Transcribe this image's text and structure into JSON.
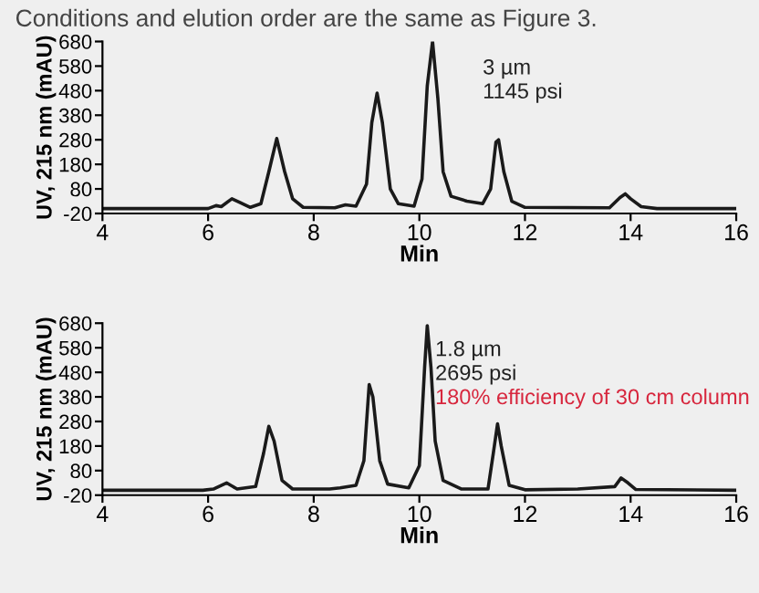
{
  "chart_data": [
    {
      "type": "line",
      "title": "Conditions and elution order are the same as Figure 3.",
      "xlabel": "Min",
      "ylabel": "UV, 215 nm (mAU)",
      "annotations": [
        "3 µm",
        "1145 psi"
      ],
      "xlim": [
        4,
        16
      ],
      "xticks": [
        4,
        6,
        8,
        10,
        12,
        14,
        16
      ],
      "ylim": [
        -20,
        680
      ],
      "yticks": [
        -20,
        80,
        180,
        280,
        380,
        480,
        580,
        680
      ],
      "grid": false,
      "legend": false,
      "series": [
        {
          "color": "#1a1a1a",
          "x": [
            4,
            6.0,
            6.15,
            6.25,
            6.45,
            6.6,
            6.8,
            7.0,
            7.15,
            7.3,
            7.45,
            7.6,
            7.8,
            8.4,
            8.6,
            8.8,
            9.0,
            9.1,
            9.2,
            9.3,
            9.45,
            9.6,
            9.9,
            10.05,
            10.15,
            10.25,
            10.35,
            10.45,
            10.6,
            10.9,
            11.2,
            11.35,
            11.45,
            11.5,
            11.6,
            11.75,
            12.0,
            13.6,
            13.8,
            13.9,
            14.0,
            14.2,
            14.5,
            16
          ],
          "values": [
            0,
            0,
            12,
            8,
            40,
            25,
            5,
            20,
            150,
            285,
            150,
            40,
            5,
            3,
            15,
            10,
            100,
            350,
            470,
            350,
            80,
            20,
            10,
            120,
            500,
            680,
            450,
            150,
            50,
            30,
            20,
            80,
            270,
            280,
            150,
            30,
            5,
            3,
            45,
            60,
            40,
            8,
            0,
            0
          ]
        }
      ]
    },
    {
      "type": "line",
      "xlabel": "Min",
      "ylabel": "UV, 215 nm (mAU)",
      "annotations": [
        "1.8 µm",
        "2695 psi",
        "180% efficiency of 30 cm column"
      ],
      "xlim": [
        4,
        16
      ],
      "xticks": [
        4,
        6,
        8,
        10,
        12,
        14,
        16
      ],
      "ylim": [
        -20,
        680
      ],
      "yticks": [
        -20,
        80,
        180,
        280,
        380,
        480,
        580,
        680
      ],
      "grid": false,
      "legend": false,
      "series": [
        {
          "color": "#1a1a1a",
          "x": [
            4,
            5.9,
            6.1,
            6.35,
            6.55,
            6.9,
            7.05,
            7.15,
            7.25,
            7.4,
            7.6,
            8.3,
            8.5,
            8.8,
            8.95,
            9.05,
            9.12,
            9.25,
            9.4,
            9.8,
            10.0,
            10.1,
            10.15,
            10.22,
            10.3,
            10.45,
            10.8,
            11.3,
            11.4,
            11.48,
            11.55,
            11.7,
            12.0,
            13.0,
            13.7,
            13.82,
            13.95,
            14.1,
            16
          ],
          "values": [
            0,
            0,
            5,
            30,
            5,
            15,
            150,
            260,
            200,
            40,
            5,
            5,
            10,
            20,
            120,
            430,
            380,
            120,
            25,
            10,
            100,
            500,
            670,
            500,
            200,
            40,
            5,
            5,
            150,
            270,
            180,
            20,
            2,
            5,
            15,
            50,
            30,
            3,
            0
          ]
        }
      ]
    }
  ]
}
